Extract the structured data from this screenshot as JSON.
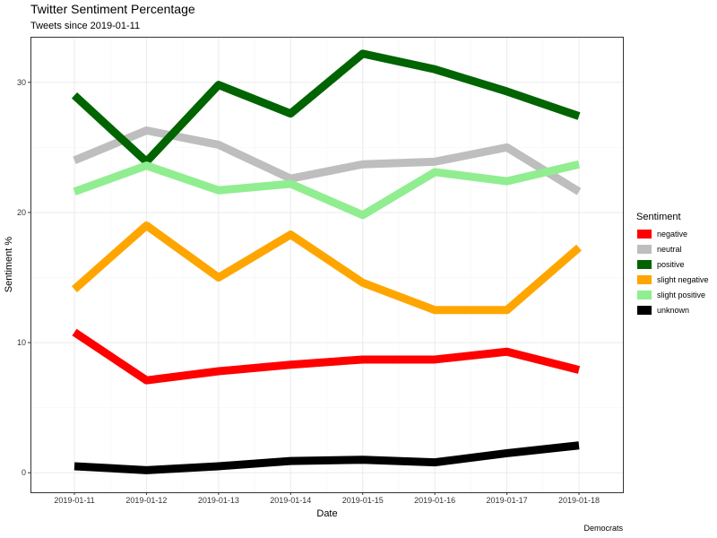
{
  "chart_data": {
    "type": "line",
    "title": "Twitter Sentiment Percentage",
    "subtitle": "Tweets since 2019-01-11",
    "xlabel": "Date",
    "ylabel": "Sentiment %",
    "caption": "Democrats",
    "legend_title": "Sentiment",
    "legend_position": "right",
    "grid": true,
    "ylim": [
      -1.5,
      33.5
    ],
    "yticks": [
      0,
      10,
      20,
      30
    ],
    "categories": [
      "2019-01-11",
      "2019-01-12",
      "2019-01-13",
      "2019-01-14",
      "2019-01-15",
      "2019-01-16",
      "2019-01-17",
      "2019-01-18"
    ],
    "series": [
      {
        "name": "negative",
        "color": "#ff0000",
        "values": [
          10.8,
          7.1,
          7.8,
          8.3,
          8.7,
          8.7,
          9.3,
          7.9
        ]
      },
      {
        "name": "neutral",
        "color": "#bebebe",
        "values": [
          24.0,
          26.3,
          25.2,
          22.6,
          23.7,
          23.9,
          25.0,
          21.6
        ]
      },
      {
        "name": "positive",
        "color": "#006400",
        "values": [
          29.0,
          23.9,
          29.8,
          27.6,
          32.2,
          31.0,
          29.3,
          27.4
        ]
      },
      {
        "name": "slight negative",
        "color": "#ffa500",
        "values": [
          14.1,
          19.0,
          15.0,
          18.3,
          14.6,
          12.5,
          12.5,
          17.3
        ]
      },
      {
        "name": "slight positive",
        "color": "#90ee90",
        "values": [
          21.6,
          23.6,
          21.7,
          22.2,
          19.8,
          23.1,
          22.4,
          23.7
        ]
      },
      {
        "name": "unknown",
        "color": "#000000",
        "values": [
          0.5,
          0.2,
          0.5,
          0.9,
          1.0,
          0.8,
          1.5,
          2.1
        ]
      }
    ]
  }
}
